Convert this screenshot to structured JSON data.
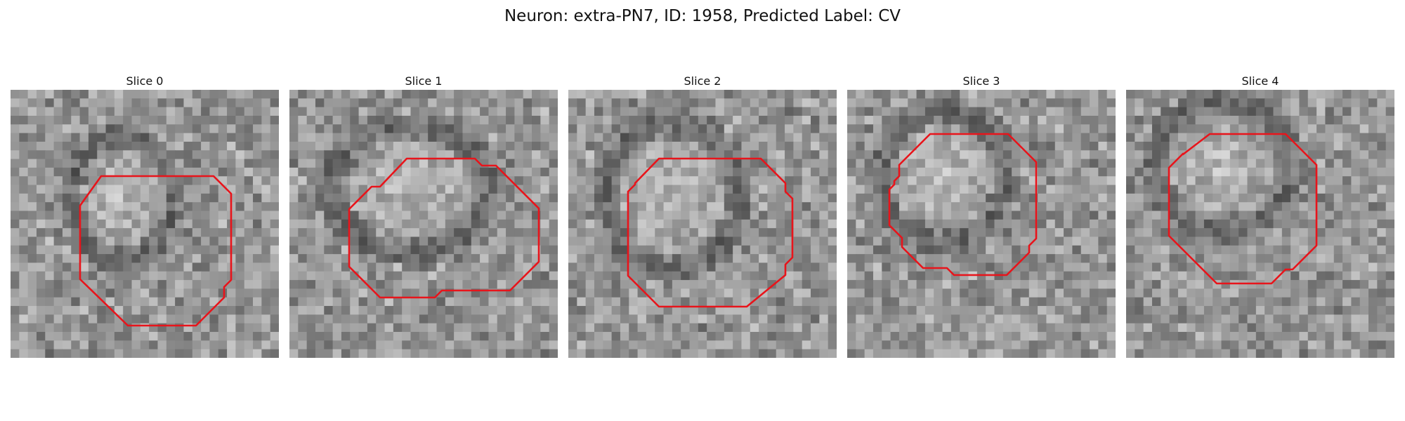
{
  "figure": {
    "title": "Neuron: extra-PN7, ID: 1958, Predicted Label: CV"
  },
  "slices": [
    {
      "label": "Slice 0"
    },
    {
      "label": "Slice 1"
    },
    {
      "label": "Slice 2"
    },
    {
      "label": "Slice 3"
    },
    {
      "label": "Slice 4"
    }
  ],
  "style": {
    "contour_color": "#e8141b",
    "colormap": "gray"
  }
}
